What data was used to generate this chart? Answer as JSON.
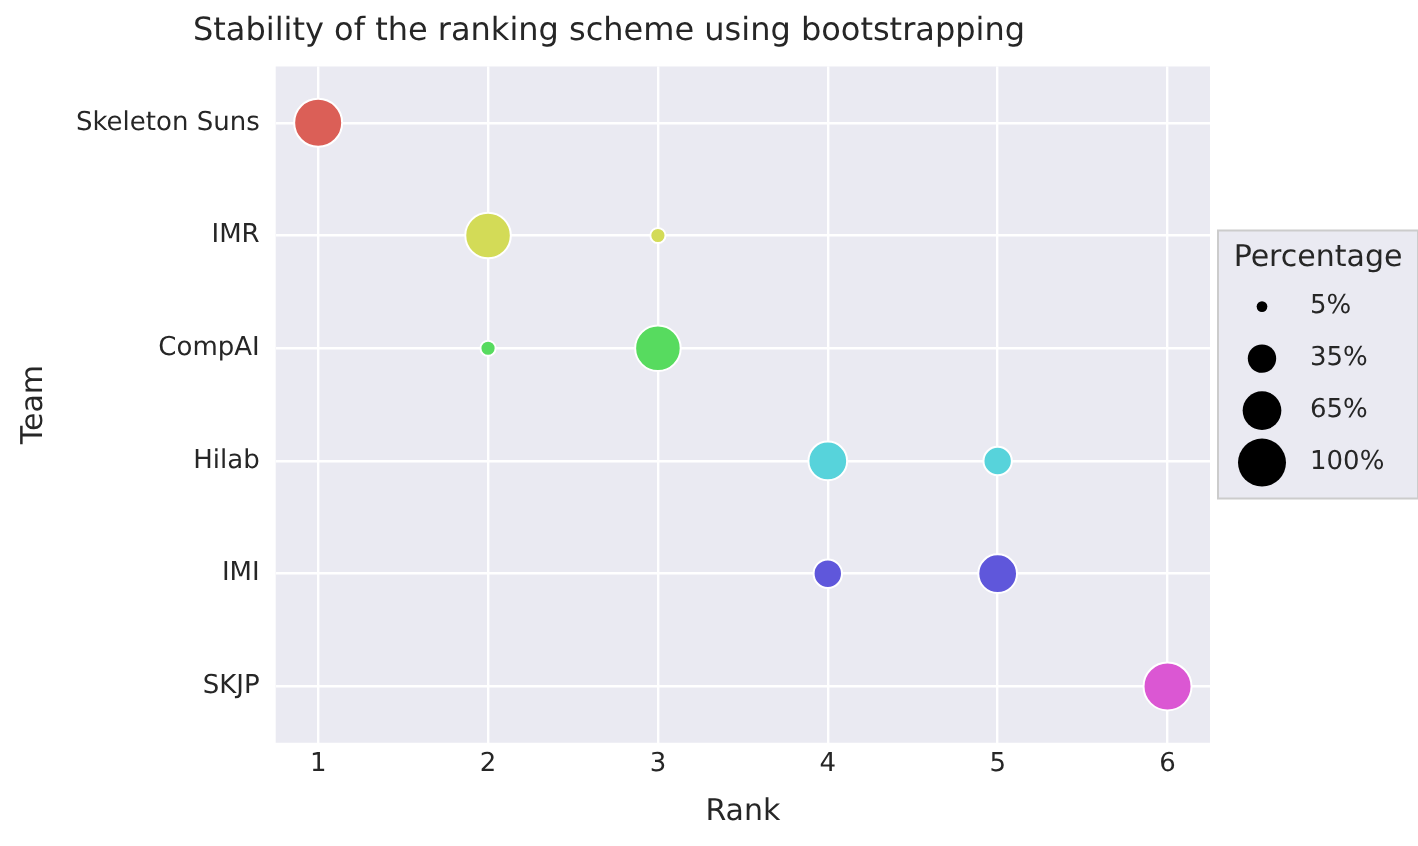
{
  "chart_data": {
    "type": "bubble",
    "title": "Stability of the ranking scheme using bootstrapping",
    "xlabel": "Rank",
    "ylabel": "Team",
    "orientation": "horizontal",
    "categories": [
      "Skeleton Suns",
      "IMR",
      "CompAI",
      "Hilab",
      "IMI",
      "SKJP"
    ],
    "series": [
      {
        "values": [
          1,
          2,
          2,
          4,
          4,
          6
        ],
        "sizes": [
          100,
          90,
          10,
          65,
          35,
          100
        ],
        "colors": [
          "#db5f57",
          "#d3db57",
          "#57db5f",
          "#57d3db",
          "#5f57db",
          "#db57d3"
        ]
      },
      {
        "values": [
          null,
          3,
          3,
          5,
          5,
          null
        ],
        "sizes": [
          null,
          10,
          90,
          35,
          65,
          null
        ],
        "colors": [
          null,
          "#d3db57",
          "#57db5f",
          "#57d3db",
          "#5f57db",
          null
        ]
      }
    ],
    "xlim": [
      0.75,
      6.25
    ],
    "xticks": [
      1,
      2,
      3,
      4,
      5,
      6
    ],
    "legend_title": "Percentage",
    "size_legend": [
      {
        "value": 5,
        "label": "5%"
      },
      {
        "value": 35,
        "label": "35%"
      },
      {
        "value": 65,
        "label": "65%"
      },
      {
        "value": 100,
        "label": "100%"
      }
    ],
    "grid": true
  }
}
